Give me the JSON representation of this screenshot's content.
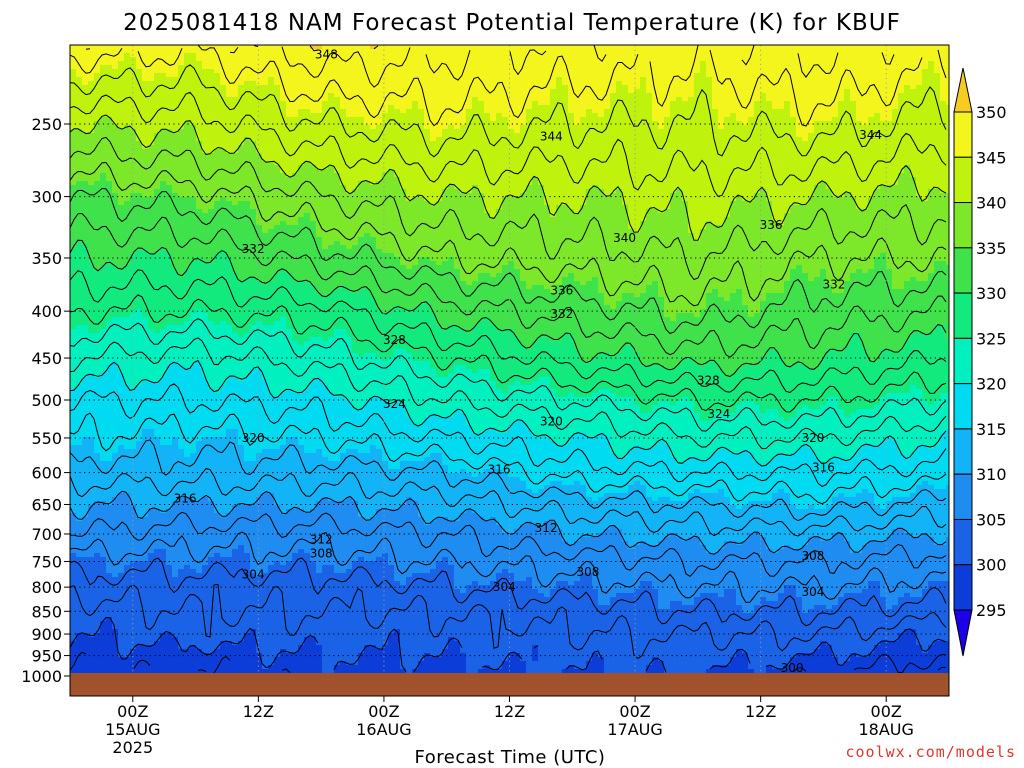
{
  "chart_data": {
    "type": "heatmap",
    "title": "2025081418 NAM Forecast Potential Temperature (K) for KBUF",
    "xlabel": "Forecast Time (UTC)",
    "credit": "coolwx.com/models",
    "y_ticks": [
      {
        "p": 250,
        "label": "250"
      },
      {
        "p": 300,
        "label": "300"
      },
      {
        "p": 350,
        "label": "350"
      },
      {
        "p": 400,
        "label": "400"
      },
      {
        "p": 450,
        "label": "450"
      },
      {
        "p": 500,
        "label": "500"
      },
      {
        "p": 550,
        "label": "550"
      },
      {
        "p": 600,
        "label": "600"
      },
      {
        "p": 650,
        "label": "650"
      },
      {
        "p": 700,
        "label": "700"
      },
      {
        "p": 750,
        "label": "750"
      },
      {
        "p": 800,
        "label": "800"
      },
      {
        "p": 850,
        "label": "850"
      },
      {
        "p": 900,
        "label": "900"
      },
      {
        "p": 950,
        "label": "950"
      },
      {
        "p": 1000,
        "label": "1000"
      }
    ],
    "x_ticks": [
      {
        "t": 6,
        "lines": [
          "00Z",
          "15AUG",
          "2025"
        ]
      },
      {
        "t": 18,
        "lines": [
          "12Z"
        ]
      },
      {
        "t": 30,
        "lines": [
          "00Z",
          "16AUG"
        ]
      },
      {
        "t": 42,
        "lines": [
          "12Z"
        ]
      },
      {
        "t": 54,
        "lines": [
          "00Z",
          "17AUG"
        ]
      },
      {
        "t": 66,
        "lines": [
          "12Z"
        ]
      },
      {
        "t": 78,
        "lines": [
          "00Z",
          "18AUG"
        ]
      }
    ],
    "x_range": [
      0,
      84
    ],
    "y_range": [
      200,
      1050
    ],
    "colorbar": {
      "levels": [
        295,
        300,
        305,
        310,
        315,
        320,
        325,
        330,
        335,
        340,
        345,
        350
      ],
      "colors": [
        "#1c00e8",
        "#0d3dd9",
        "#1a63e6",
        "#1f8cf2",
        "#13b4f7",
        "#00dbf2",
        "#00f0c0",
        "#13ea7e",
        "#3fe24a",
        "#7de82a",
        "#bff20d",
        "#f5f51e",
        "#f7cb22"
      ]
    },
    "ground_color": "#a0522d",
    "isotherm_step": 2,
    "profiles": [
      {
        "t": 0,
        "theta": [
          348,
          340,
          334,
          330,
          326,
          322,
          318,
          316,
          313,
          310,
          308,
          305,
          303,
          301,
          300,
          299,
          298
        ]
      },
      {
        "t": 12,
        "theta": [
          347,
          341,
          335,
          330,
          326,
          321,
          318,
          315,
          313,
          310,
          307,
          305,
          303,
          302,
          301,
          299,
          298
        ]
      },
      {
        "t": 24,
        "theta": [
          350,
          344,
          338,
          333,
          327,
          323,
          319,
          316,
          313,
          310,
          307,
          305,
          303,
          302,
          301,
          300,
          299
        ]
      },
      {
        "t": 36,
        "theta": [
          349,
          345,
          340,
          336,
          331,
          326,
          322,
          318,
          314,
          311,
          308,
          306,
          304,
          302,
          301,
          300,
          299
        ]
      },
      {
        "t": 48,
        "theta": [
          348,
          344,
          340,
          337,
          333,
          329,
          324,
          320,
          317,
          313,
          310,
          307,
          305,
          303,
          302,
          301,
          300
        ]
      },
      {
        "t": 60,
        "theta": [
          347,
          344,
          341,
          338,
          335,
          331,
          326,
          322,
          318,
          314,
          311,
          308,
          306,
          304,
          302,
          301,
          300
        ]
      },
      {
        "t": 72,
        "theta": [
          349,
          345,
          340,
          336,
          333,
          330,
          326,
          322,
          318,
          315,
          311,
          308,
          306,
          304,
          302,
          300,
          298
        ]
      },
      {
        "t": 84,
        "theta": [
          347,
          343,
          339,
          336,
          332,
          328,
          324,
          320,
          317,
          313,
          310,
          307,
          305,
          303,
          300,
          298,
          296
        ]
      }
    ],
    "profile_levels": [
      200,
      250,
      300,
      350,
      400,
      450,
      500,
      550,
      600,
      650,
      700,
      750,
      800,
      850,
      900,
      950,
      1000
    ],
    "contour_labels": [
      {
        "t": 24.5,
        "p": 210,
        "text": "348"
      },
      {
        "t": 46,
        "p": 258,
        "text": "344"
      },
      {
        "t": 76.5,
        "p": 257,
        "text": "344"
      },
      {
        "t": 17.5,
        "p": 342,
        "text": "332"
      },
      {
        "t": 53,
        "p": 333,
        "text": "340"
      },
      {
        "t": 67,
        "p": 322,
        "text": "336"
      },
      {
        "t": 47,
        "p": 380,
        "text": "336"
      },
      {
        "t": 47,
        "p": 403,
        "text": "332"
      },
      {
        "t": 73,
        "p": 374,
        "text": "332"
      },
      {
        "t": 31,
        "p": 430,
        "text": "328"
      },
      {
        "t": 61,
        "p": 476,
        "text": "328"
      },
      {
        "t": 31,
        "p": 505,
        "text": "324"
      },
      {
        "t": 62,
        "p": 518,
        "text": "324"
      },
      {
        "t": 17.5,
        "p": 550,
        "text": "320"
      },
      {
        "t": 46,
        "p": 528,
        "text": "320"
      },
      {
        "t": 71,
        "p": 550,
        "text": "320"
      },
      {
        "t": 11,
        "p": 640,
        "text": "316"
      },
      {
        "t": 41,
        "p": 595,
        "text": "316"
      },
      {
        "t": 72,
        "p": 592,
        "text": "316"
      },
      {
        "t": 45.5,
        "p": 690,
        "text": "312"
      },
      {
        "t": 24,
        "p": 710,
        "text": "312"
      },
      {
        "t": 24,
        "p": 735,
        "text": "308"
      },
      {
        "t": 49.5,
        "p": 770,
        "text": "308"
      },
      {
        "t": 71,
        "p": 740,
        "text": "308"
      },
      {
        "t": 17.5,
        "p": 775,
        "text": "304"
      },
      {
        "t": 41.5,
        "p": 800,
        "text": "304"
      },
      {
        "t": 71,
        "p": 810,
        "text": "304"
      },
      {
        "t": 69,
        "p": 980,
        "text": "300"
      }
    ]
  }
}
